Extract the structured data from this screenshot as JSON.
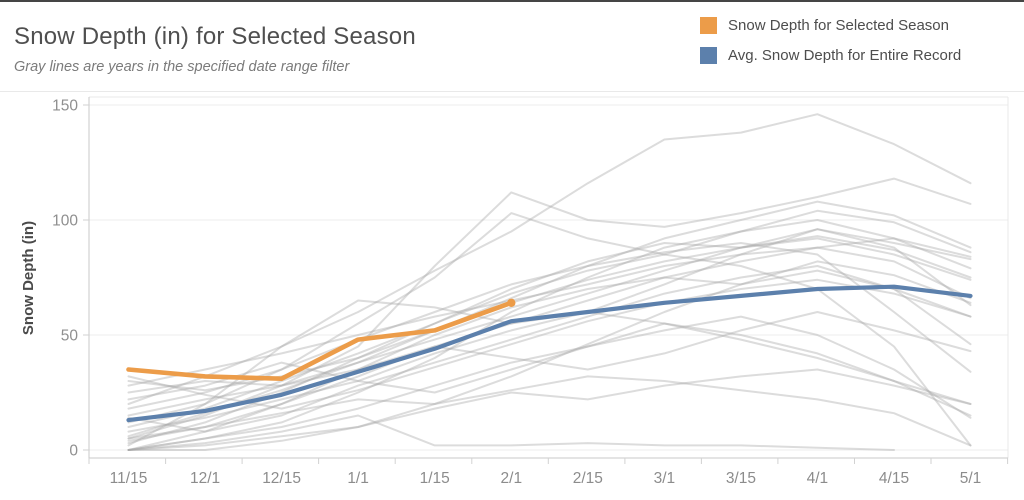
{
  "header": {
    "title": "Snow Depth (in) for Selected Season",
    "subtitle": "Gray lines are years in the specified date range filter"
  },
  "legend": {
    "items": [
      {
        "label": "Snow Depth for Selected Season",
        "color": "#ec9c49"
      },
      {
        "label": "Avg. Snow Depth for Entire Record",
        "color": "#5c80ac"
      }
    ]
  },
  "chart_data": {
    "type": "line",
    "title": "Snow Depth (in) for Selected Season",
    "xlabel": "",
    "ylabel": "Snow Depth (in)",
    "x_tick_labels": [
      "11/15",
      "12/1",
      "12/15",
      "1/1",
      "1/15",
      "2/1",
      "2/15",
      "3/1",
      "3/15",
      "4/1",
      "4/15",
      "5/1"
    ],
    "y_ticks": [
      0,
      50,
      100,
      150
    ],
    "ylim": [
      0,
      153
    ],
    "grid": "horizontal",
    "legend_position": "top-right",
    "series": [
      {
        "name": "Snow Depth for Selected Season",
        "color": "#ec9c49",
        "width": 4.6,
        "end_marker": true,
        "values": [
          35,
          32,
          31,
          48,
          52,
          64,
          null,
          null,
          null,
          null,
          null,
          null
        ]
      },
      {
        "name": "Avg. Snow Depth for Entire Record",
        "color": "#5c80ac",
        "width": 4.2,
        "end_marker": false,
        "values": [
          13,
          17,
          24,
          34,
          44,
          56,
          60,
          64,
          67,
          70,
          71,
          67
        ]
      }
    ],
    "background_years": {
      "description": "unlabeled gray lines, one per year in the date range filter (values approximate)",
      "color": "#a8a8a8",
      "opacity": 0.4,
      "width": 2,
      "lines": [
        [
          20,
          32,
          45,
          60,
          78,
          95,
          116,
          135,
          138,
          146,
          133,
          116
        ],
        [
          5,
          15,
          28,
          45,
          80,
          112,
          100,
          97,
          103,
          110,
          118,
          107
        ],
        [
          18,
          25,
          35,
          55,
          75,
          103,
          92,
          85,
          95,
          104,
          99,
          86
        ],
        [
          2,
          20,
          45,
          65,
          62,
          55,
          60,
          72,
          85,
          96,
          90,
          83
        ],
        [
          0,
          5,
          12,
          25,
          40,
          60,
          75,
          88,
          95,
          100,
          92,
          79
        ],
        [
          10,
          18,
          30,
          42,
          55,
          70,
          82,
          90,
          88,
          92,
          85,
          74
        ],
        [
          28,
          35,
          42,
          50,
          58,
          65,
          72,
          80,
          85,
          88,
          82,
          66
        ],
        [
          15,
          22,
          28,
          38,
          48,
          58,
          68,
          78,
          88,
          96,
          88,
          63
        ],
        [
          5,
          10,
          20,
          35,
          50,
          62,
          70,
          75,
          72,
          78,
          70,
          58
        ],
        [
          0,
          8,
          15,
          28,
          38,
          48,
          58,
          68,
          75,
          80,
          70,
          46
        ],
        [
          12,
          20,
          35,
          48,
          60,
          72,
          80,
          86,
          90,
          85,
          60,
          34
        ],
        [
          8,
          14,
          22,
          30,
          42,
          52,
          60,
          55,
          48,
          40,
          30,
          20
        ],
        [
          0,
          5,
          10,
          18,
          28,
          38,
          45,
          52,
          58,
          50,
          35,
          14
        ],
        [
          3,
          12,
          25,
          40,
          55,
          68,
          78,
          85,
          80,
          70,
          45,
          2
        ],
        [
          25,
          30,
          28,
          35,
          45,
          55,
          65,
          75,
          82,
          88,
          92,
          84
        ],
        [
          30,
          26,
          32,
          40,
          52,
          64,
          74,
          82,
          88,
          93,
          87,
          75
        ],
        [
          0,
          3,
          8,
          15,
          2,
          2,
          3,
          2,
          2,
          1,
          0,
          null
        ],
        [
          0,
          2,
          6,
          10,
          18,
          25,
          22,
          28,
          32,
          35,
          28,
          20
        ],
        [
          22,
          28,
          38,
          30,
          25,
          35,
          45,
          55,
          50,
          42,
          30,
          15
        ],
        [
          32,
          24,
          18,
          26,
          36,
          46,
          56,
          64,
          70,
          74,
          68,
          58
        ],
        [
          6,
          16,
          26,
          38,
          52,
          66,
          80,
          92,
          100,
          108,
          102,
          88
        ],
        [
          0,
          0,
          4,
          10,
          20,
          32,
          46,
          60,
          72,
          82,
          76,
          64
        ],
        [
          4,
          10,
          16,
          22,
          20,
          26,
          32,
          30,
          26,
          22,
          16,
          2
        ],
        [
          14,
          8,
          20,
          32,
          45,
          40,
          35,
          42,
          52,
          60,
          52,
          43
        ]
      ]
    }
  }
}
